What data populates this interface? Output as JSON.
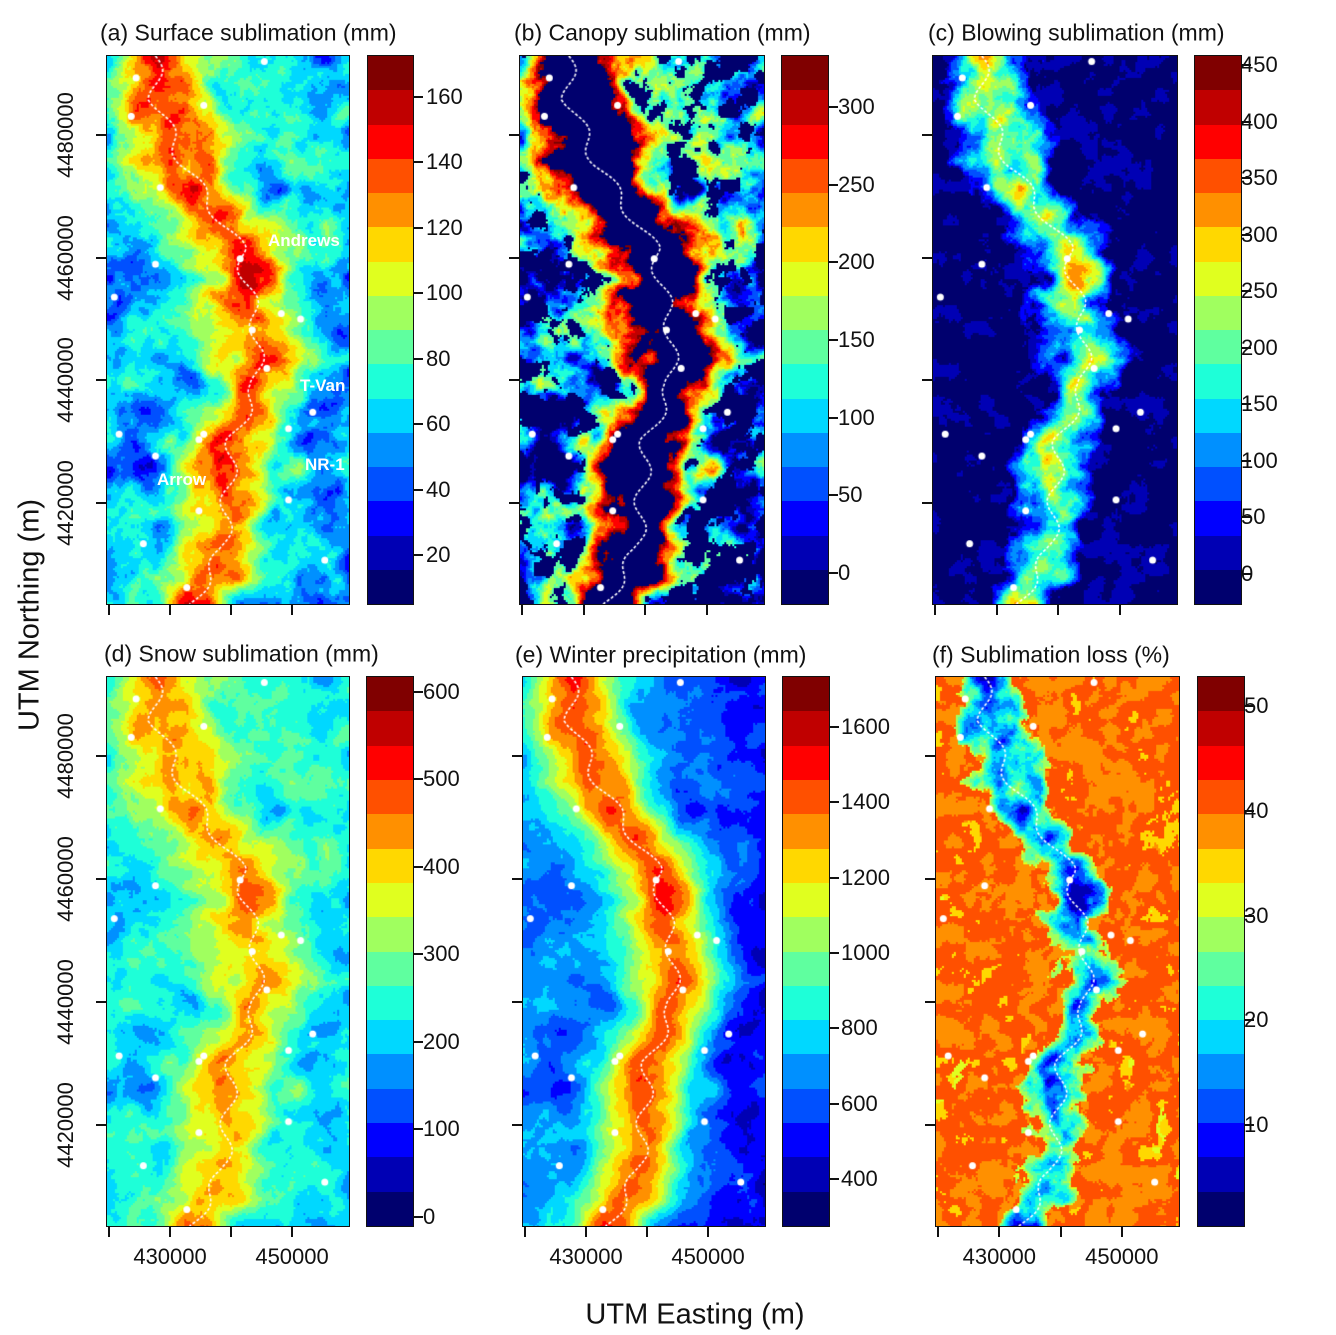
{
  "figure": {
    "ylabel": "UTM Northing (m)",
    "xlabel": "UTM Easting (m)",
    "x_ticks": [
      420000,
      430000,
      440000,
      450000
    ],
    "x_tick_labels": [
      "",
      "430000",
      "",
      "450000"
    ],
    "y_ticks": [
      4480000,
      4460000,
      4440000,
      4420000
    ],
    "y_tick_labels": [
      "4480000",
      "4460000",
      "4440000",
      "4420000"
    ],
    "xlim": [
      419500,
      459500
    ],
    "ylim": [
      4403400,
      4493000
    ],
    "colormap": [
      "#00006e",
      "#0000b4",
      "#0000ff",
      "#0050ff",
      "#0090ff",
      "#00d8ff",
      "#1effd8",
      "#5fff9f",
      "#a0ff5f",
      "#e0ff1f",
      "#ffd800",
      "#ff9000",
      "#ff5000",
      "#ff0000",
      "#c00000",
      "#800000"
    ],
    "divide_line_color": "#ffffff",
    "site_marker_color": "#ffffff"
  },
  "chart_data": [
    {
      "type": "heatmap",
      "title": "(a) Surface sublimation (mm)",
      "colorbar_range": [
        4.7,
        172.8
      ],
      "colorbar_ticks": [
        20,
        40,
        60,
        80,
        100,
        120,
        140,
        160
      ],
      "colorbar_tick_labels": [
        "20",
        "40",
        "60",
        "80",
        "100",
        "120",
        "140",
        "160"
      ],
      "annotations": [
        "Andrews",
        "T-Van",
        "NR-1",
        "Arrow"
      ]
    },
    {
      "type": "heatmap",
      "title": "(b) Canopy sublimation (mm)",
      "colorbar_range": [
        -20.6,
        333.5
      ],
      "colorbar_ticks": [
        0,
        50,
        100,
        150,
        200,
        250,
        300
      ],
      "colorbar_tick_labels": [
        "0",
        "50",
        "100",
        "150",
        "200",
        "250",
        "300"
      ]
    },
    {
      "type": "heatmap",
      "title": "(c) Blowing sublimation (mm)",
      "colorbar_range": [
        -27.4,
        458.8
      ],
      "colorbar_ticks": [
        0,
        50,
        100,
        150,
        200,
        250,
        300,
        350,
        400,
        450
      ],
      "colorbar_tick_labels": [
        "0",
        "50",
        "100",
        "150",
        "200",
        "250",
        "300",
        "350",
        "400",
        "450"
      ]
    },
    {
      "type": "heatmap",
      "title": "(d) Snow sublimation (mm)",
      "colorbar_range": [
        -11.4,
        618
      ],
      "colorbar_ticks": [
        0,
        100,
        200,
        300,
        400,
        500,
        600
      ],
      "colorbar_tick_labels": [
        "0",
        "100",
        "200",
        "300",
        "400",
        "500",
        "600"
      ]
    },
    {
      "type": "heatmap",
      "title": "(e) Winter precipitation (mm)",
      "colorbar_range": [
        272.6,
        1735
      ],
      "colorbar_ticks": [
        400,
        600,
        800,
        1000,
        1200,
        1400,
        1600
      ],
      "colorbar_tick_labels": [
        "400",
        "600",
        "800",
        "1000",
        "1200",
        "1400",
        "1600"
      ]
    },
    {
      "type": "heatmap",
      "title": "(f) Sublimation loss (%)",
      "colorbar_range": [
        0.26,
        52.9
      ],
      "colorbar_ticks": [
        10,
        20,
        30,
        40,
        50
      ],
      "colorbar_tick_labels": [
        "10",
        "20",
        "30",
        "40",
        "50"
      ]
    }
  ]
}
